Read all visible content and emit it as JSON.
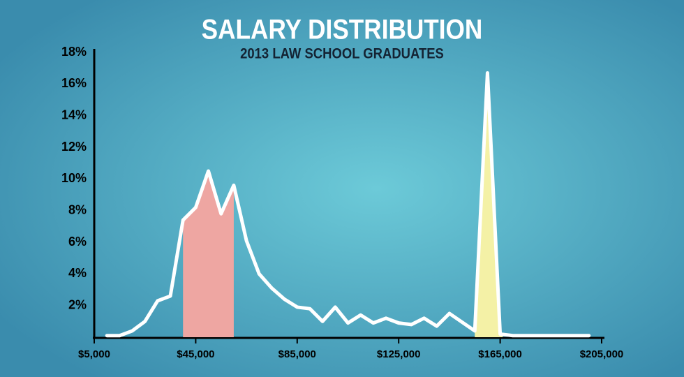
{
  "chart_data": {
    "type": "line",
    "title": "SALARY DISTRIBUTION",
    "subtitle": "2013 LAW SCHOOL GRADUATES",
    "x": [
      10000,
      15000,
      20000,
      25000,
      30000,
      35000,
      40000,
      45000,
      50000,
      55000,
      60000,
      65000,
      70000,
      75000,
      80000,
      85000,
      90000,
      95000,
      100000,
      105000,
      110000,
      115000,
      120000,
      125000,
      130000,
      135000,
      140000,
      145000,
      155000,
      160000,
      165000,
      170000,
      185000,
      200000
    ],
    "values": [
      0.1,
      0.1,
      0.4,
      1.0,
      2.3,
      2.6,
      7.4,
      8.2,
      10.5,
      7.8,
      9.6,
      6.1,
      4.0,
      3.1,
      2.4,
      1.9,
      1.8,
      1.0,
      1.9,
      0.9,
      1.4,
      0.9,
      1.2,
      0.9,
      0.8,
      1.2,
      0.7,
      1.5,
      0.4,
      16.7,
      0.2,
      0.1,
      0.1,
      0.1
    ],
    "color": "#ffffff",
    "highlights": [
      {
        "x0": 40000,
        "x1": 60000,
        "color": "#eea6a2"
      },
      {
        "x0": 155000,
        "x1": 166000,
        "color": "#f4f1a6"
      }
    ],
    "xlim": [
      5000,
      205000
    ],
    "ylim": [
      0,
      18
    ],
    "xticks": [
      {
        "value": 5000,
        "label": "$5,000"
      },
      {
        "value": 45000,
        "label": "$45,000"
      },
      {
        "value": 85000,
        "label": "$85,000"
      },
      {
        "value": 125000,
        "label": "$125,000"
      },
      {
        "value": 165000,
        "label": "$165,000"
      },
      {
        "value": 205000,
        "label": "$205,000"
      }
    ],
    "yticks": [
      {
        "value": 2,
        "label": "2%"
      },
      {
        "value": 4,
        "label": "4%"
      },
      {
        "value": 6,
        "label": "6%"
      },
      {
        "value": 8,
        "label": "8%"
      },
      {
        "value": 10,
        "label": "10%"
      },
      {
        "value": 12,
        "label": "12%"
      },
      {
        "value": 14,
        "label": "14%"
      },
      {
        "value": 16,
        "label": "16%"
      },
      {
        "value": 18,
        "label": "18%"
      }
    ]
  }
}
